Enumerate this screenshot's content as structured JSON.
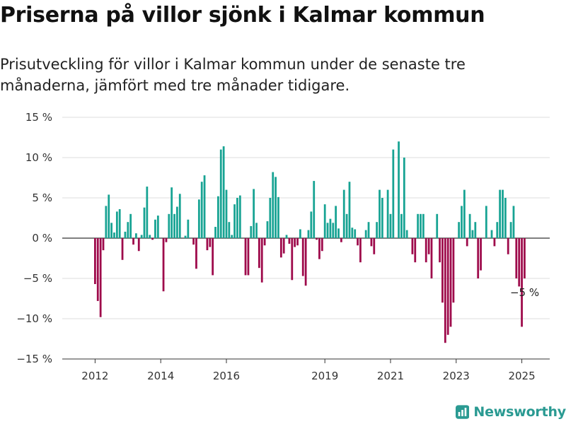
{
  "header": {
    "title": "Priserna på villor sjönk i Kalmar kommun",
    "subtitle": "Prisutveckling för villor i Kalmar kommun under de senaste tre månaderna, jämfört med tre månader tidigare."
  },
  "brand": {
    "name": "Newsworthy",
    "color": "#2a9a92"
  },
  "chart_data": {
    "type": "bar",
    "title": "",
    "xlabel": "",
    "ylabel": "",
    "ylim": [
      -15,
      15
    ],
    "yticks": [
      15,
      10,
      5,
      0,
      -5,
      -10,
      -15
    ],
    "ytick_labels": [
      "15 %",
      "10 %",
      "5 %",
      "0 %",
      "−5 %",
      "−10 %",
      "−15 %"
    ],
    "xtick_labels": [
      "2012",
      "2014",
      "2016",
      "2019",
      "2021",
      "2023",
      "2025"
    ],
    "xtick_years": [
      2012,
      2014,
      2016,
      2019,
      2021,
      2023,
      2025
    ],
    "x_range": [
      2011.0,
      2025.85
    ],
    "grid": true,
    "colors": {
      "positive": "#17a393",
      "negative": "#9e0a4b"
    },
    "annotation": {
      "text": "−5 %",
      "year": 2025.0,
      "value": -5
    },
    "x": [
      2012.0,
      2012.083,
      2012.167,
      2012.25,
      2012.333,
      2012.417,
      2012.5,
      2012.583,
      2012.667,
      2012.75,
      2012.833,
      2012.917,
      2013.0,
      2013.083,
      2013.167,
      2013.25,
      2013.333,
      2013.417,
      2013.5,
      2013.583,
      2013.667,
      2013.75,
      2013.833,
      2013.917,
      2014.0,
      2014.083,
      2014.167,
      2014.25,
      2014.333,
      2014.417,
      2014.5,
      2014.583,
      2014.667,
      2014.75,
      2014.833,
      2014.917,
      2015.0,
      2015.083,
      2015.167,
      2015.25,
      2015.333,
      2015.417,
      2015.5,
      2015.583,
      2015.667,
      2015.75,
      2015.833,
      2015.917,
      2016.0,
      2016.083,
      2016.167,
      2016.25,
      2016.333,
      2016.417,
      2016.5,
      2016.583,
      2016.667,
      2016.75,
      2016.833,
      2016.917,
      2017.0,
      2017.083,
      2017.167,
      2017.25,
      2017.333,
      2017.417,
      2017.5,
      2017.583,
      2017.667,
      2017.75,
      2017.833,
      2017.917,
      2018.0,
      2018.083,
      2018.167,
      2018.25,
      2018.333,
      2018.417,
      2018.5,
      2018.583,
      2018.667,
      2018.75,
      2018.833,
      2018.917,
      2019.0,
      2019.083,
      2019.167,
      2019.25,
      2019.333,
      2019.417,
      2019.5,
      2019.583,
      2019.667,
      2019.75,
      2019.833,
      2019.917,
      2020.0,
      2020.083,
      2020.167,
      2020.25,
      2020.333,
      2020.417,
      2020.5,
      2020.583,
      2020.667,
      2020.75,
      2020.833,
      2020.917,
      2021.0,
      2021.083,
      2021.167,
      2021.25,
      2021.333,
      2021.417,
      2021.5,
      2021.583,
      2021.667,
      2021.75,
      2021.833,
      2021.917,
      2022.0,
      2022.083,
      2022.167,
      2022.25,
      2022.333,
      2022.417,
      2022.5,
      2022.583,
      2022.667,
      2022.75,
      2022.833,
      2022.917,
      2023.0,
      2023.083,
      2023.167,
      2023.25,
      2023.333,
      2023.417,
      2023.5,
      2023.583,
      2023.667,
      2023.75,
      2023.833,
      2023.917,
      2024.0,
      2024.083,
      2024.167,
      2024.25,
      2024.333,
      2024.417,
      2024.5,
      2024.583,
      2024.667,
      2024.75,
      2024.833,
      2024.917,
      2025.0,
      2025.083
    ],
    "values": [
      -5.7,
      -7.8,
      -9.8,
      -1.5,
      4.0,
      5.4,
      1.9,
      0.7,
      3.3,
      3.6,
      -2.7,
      0.8,
      2.0,
      3.0,
      -0.8,
      0.6,
      -1.6,
      0.4,
      3.8,
      6.4,
      0.4,
      -0.2,
      2.3,
      2.8,
      0.0,
      -6.6,
      -0.5,
      3.0,
      6.3,
      3.0,
      3.9,
      5.5,
      0.0,
      0.3,
      2.3,
      0.0,
      -0.8,
      -3.8,
      4.8,
      7.0,
      7.8,
      -1.5,
      -1.1,
      -4.6,
      1.4,
      5.2,
      11.0,
      11.4,
      6.0,
      2.0,
      0.4,
      4.2,
      5.0,
      5.3,
      0.0,
      -4.6,
      -4.6,
      1.5,
      6.1,
      1.9,
      -3.7,
      -5.5,
      -0.9,
      2.1,
      5.0,
      8.2,
      7.6,
      5.1,
      -2.4,
      -1.9,
      0.4,
      -0.7,
      -5.2,
      -1.1,
      -0.9,
      1.1,
      -4.7,
      -5.9,
      1.0,
      3.3,
      7.1,
      -0.2,
      -2.6,
      -1.6,
      4.2,
      1.9,
      2.4,
      1.9,
      4.0,
      1.2,
      -0.5,
      6.0,
      3.0,
      7.0,
      1.3,
      1.1,
      -0.9,
      -3.0,
      0.0,
      1.0,
      2.0,
      -1.0,
      -2.0,
      2.0,
      6.0,
      5.0,
      0.0,
      6.0,
      3.0,
      11.0,
      0.0,
      12.0,
      3.0,
      10.0,
      1.0,
      0.0,
      -2.0,
      -3.0,
      3.0,
      3.0,
      3.0,
      -3.0,
      -2.0,
      -5.0,
      0.0,
      3.0,
      -3.0,
      -8.0,
      -13.0,
      -12.0,
      -11.0,
      -8.0,
      0.0,
      2.0,
      4.0,
      6.0,
      -1.0,
      3.0,
      1.0,
      2.0,
      -5.0,
      -4.0,
      0.0,
      4.0,
      0.0,
      1.0,
      -1.0,
      2.0,
      6.0,
      6.0,
      5.0,
      -2.0,
      2.0,
      4.0,
      -5.0,
      -6.0,
      -11.0,
      -5.0
    ]
  }
}
